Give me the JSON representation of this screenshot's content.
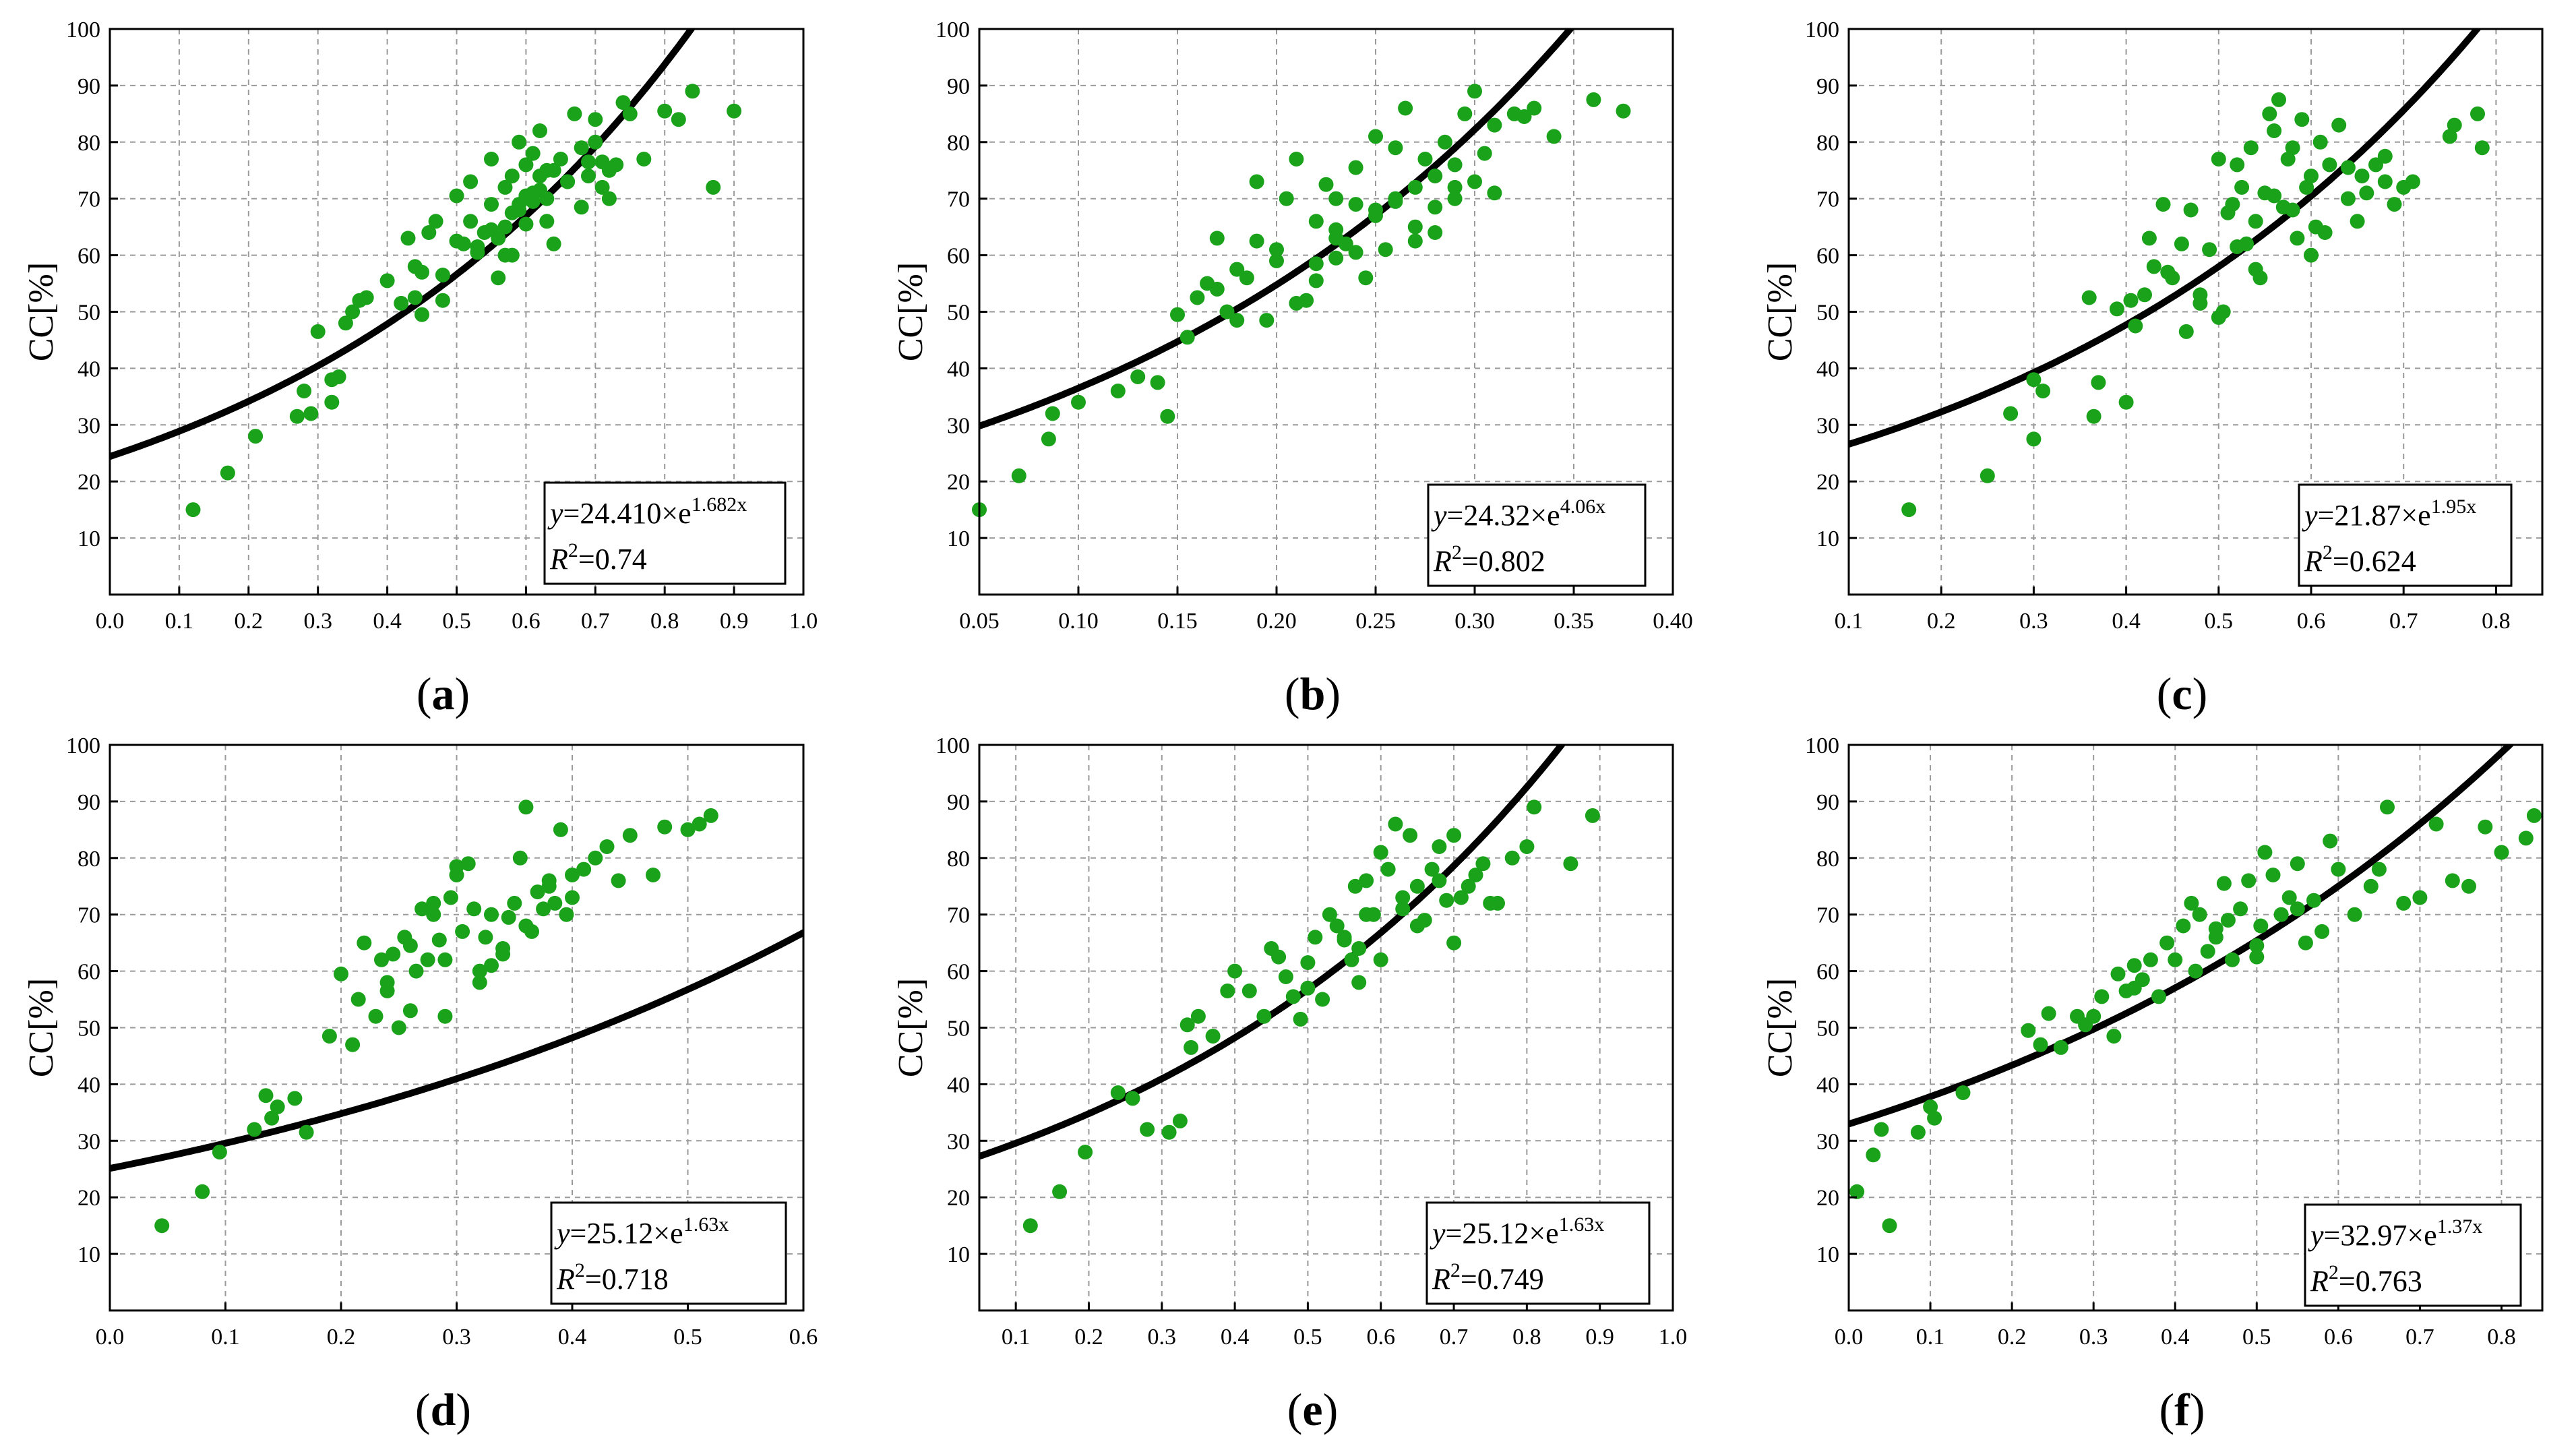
{
  "figure": {
    "point_color": "#1aa31a",
    "line_color": "#000000"
  },
  "chart_data": [
    {
      "id": "a",
      "type": "scatter",
      "panel_label": "a",
      "ylabel": "CC[%]",
      "xlim": [
        0,
        1.0
      ],
      "ylim": [
        0,
        100
      ],
      "xticks": [
        "0.0",
        "0.1",
        "0.2",
        "0.3",
        "0.4",
        "0.5",
        "0.6",
        "0.7",
        "0.8",
        "0.9",
        "1.0"
      ],
      "xtick_values": [
        0,
        0.1,
        0.2,
        0.3,
        0.4,
        0.5,
        0.6,
        0.7,
        0.8,
        0.9,
        1.0
      ],
      "yticks": [
        "10",
        "20",
        "30",
        "40",
        "50",
        "60",
        "70",
        "80",
        "90",
        "100"
      ],
      "fit": {
        "a": 24.41,
        "b": 1.682,
        "eq_coef": "24.410",
        "eq_exp": "1.682x",
        "r2": "0.74"
      },
      "x": [
        0.12,
        0.17,
        0.21,
        0.27,
        0.28,
        0.29,
        0.3,
        0.32,
        0.32,
        0.33,
        0.34,
        0.35,
        0.36,
        0.37,
        0.4,
        0.42,
        0.43,
        0.44,
        0.45,
        0.45,
        0.46,
        0.47,
        0.48,
        0.5,
        0.51,
        0.52,
        0.52,
        0.53,
        0.54,
        0.55,
        0.55,
        0.56,
        0.56,
        0.57,
        0.57,
        0.58,
        0.58,
        0.59,
        0.59,
        0.6,
        0.6,
        0.61,
        0.61,
        0.62,
        0.62,
        0.63,
        0.63,
        0.64,
        0.64,
        0.65,
        0.66,
        0.67,
        0.68,
        0.68,
        0.69,
        0.7,
        0.7,
        0.71,
        0.72,
        0.72,
        0.73,
        0.74,
        0.75,
        0.77,
        0.8,
        0.82,
        0.84,
        0.87,
        0.9,
        0.55,
        0.58,
        0.6,
        0.62,
        0.66,
        0.69,
        0.71,
        0.48,
        0.53,
        0.57,
        0.61,
        0.44,
        0.5,
        0.59,
        0.63
      ],
      "y": [
        15,
        21.5,
        28,
        31.5,
        36,
        32,
        46.5,
        34,
        38,
        38.5,
        48,
        50,
        52,
        52.5,
        55.5,
        51.5,
        63,
        52.5,
        49.5,
        57,
        64,
        66,
        52,
        70.5,
        62,
        66,
        73,
        61.5,
        64,
        69,
        77,
        56,
        63,
        60,
        72,
        74,
        60,
        68,
        80,
        76,
        65.5,
        71,
        78,
        74,
        82,
        70,
        66,
        75,
        62,
        77,
        73,
        85,
        68.5,
        79,
        76.5,
        80,
        84,
        72,
        70,
        75,
        76,
        87,
        85,
        77,
        85.5,
        84,
        89,
        72,
        85.5,
        64.5,
        67.5,
        70.5,
        71.5,
        73,
        74,
        76.5,
        56.5,
        60.5,
        65,
        69.5,
        58,
        62.5,
        69,
        75
      ]
    },
    {
      "id": "b",
      "type": "scatter",
      "panel_label": "b",
      "ylabel": "CC[%]",
      "xlim": [
        0.05,
        0.4
      ],
      "ylim": [
        0,
        100
      ],
      "xticks": [
        "0.05",
        "0.10",
        "0.15",
        "0.20",
        "0.25",
        "0.30",
        "0.35",
        "0.40"
      ],
      "xtick_values": [
        0.05,
        0.1,
        0.15,
        0.2,
        0.25,
        0.3,
        0.35,
        0.4
      ],
      "yticks": [
        "10",
        "20",
        "30",
        "40",
        "50",
        "60",
        "70",
        "80",
        "90",
        "100"
      ],
      "fit": {
        "a": 24.32,
        "b": 4.06,
        "eq_coef": "24.32",
        "eq_exp": "4.06x",
        "r2": "0.802"
      },
      "x": [
        0.05,
        0.07,
        0.085,
        0.087,
        0.1,
        0.12,
        0.13,
        0.14,
        0.145,
        0.15,
        0.155,
        0.16,
        0.165,
        0.17,
        0.175,
        0.18,
        0.185,
        0.19,
        0.195,
        0.2,
        0.205,
        0.21,
        0.215,
        0.22,
        0.22,
        0.225,
        0.23,
        0.23,
        0.235,
        0.24,
        0.24,
        0.245,
        0.25,
        0.25,
        0.255,
        0.26,
        0.26,
        0.265,
        0.27,
        0.27,
        0.275,
        0.28,
        0.28,
        0.285,
        0.29,
        0.29,
        0.295,
        0.3,
        0.3,
        0.305,
        0.31,
        0.31,
        0.32,
        0.325,
        0.33,
        0.34,
        0.36,
        0.375,
        0.19,
        0.21,
        0.23,
        0.25,
        0.27,
        0.29,
        0.18,
        0.2,
        0.22,
        0.24,
        0.26,
        0.17,
        0.23,
        0.28
      ],
      "y": [
        15,
        21,
        27.5,
        32,
        34,
        36,
        38.5,
        37.5,
        31.5,
        49.5,
        45.5,
        52.5,
        55,
        63,
        50,
        48.5,
        56,
        62.5,
        48.5,
        59,
        70,
        77,
        52,
        55.5,
        66,
        72.5,
        64.5,
        70,
        62,
        69,
        75.5,
        56,
        68,
        81,
        61,
        79,
        70,
        86,
        72,
        62.5,
        77,
        74,
        68.5,
        80,
        72,
        76,
        85,
        73,
        89,
        78,
        71,
        83,
        85,
        84.5,
        86,
        81,
        87.5,
        85.5,
        73,
        51.5,
        63,
        67,
        65,
        70,
        57.5,
        61,
        58.5,
        60.5,
        69.5,
        54,
        59.5,
        64
      ]
    },
    {
      "id": "c",
      "type": "scatter",
      "panel_label": "c",
      "ylabel": "CC[%]",
      "xlim": [
        0.1,
        0.85
      ],
      "ylim": [
        0,
        100
      ],
      "xticks": [
        "0.1",
        "0.2",
        "0.3",
        "0.4",
        "0.5",
        "0.6",
        "0.7",
        "0.8"
      ],
      "xtick_values": [
        0.1,
        0.2,
        0.3,
        0.4,
        0.5,
        0.6,
        0.7,
        0.8
      ],
      "yticks": [
        "10",
        "20",
        "30",
        "40",
        "50",
        "60",
        "70",
        "80",
        "90",
        "100"
      ],
      "fit": {
        "a": 21.87,
        "b": 1.95,
        "eq_coef": "21.87",
        "eq_exp": "1.95x",
        "r2": "0.624"
      },
      "x": [
        0.165,
        0.25,
        0.275,
        0.3,
        0.3,
        0.31,
        0.36,
        0.365,
        0.37,
        0.39,
        0.4,
        0.405,
        0.41,
        0.42,
        0.425,
        0.43,
        0.44,
        0.445,
        0.45,
        0.46,
        0.465,
        0.47,
        0.48,
        0.49,
        0.5,
        0.505,
        0.51,
        0.515,
        0.52,
        0.525,
        0.53,
        0.535,
        0.54,
        0.545,
        0.55,
        0.555,
        0.56,
        0.565,
        0.57,
        0.575,
        0.58,
        0.585,
        0.59,
        0.595,
        0.6,
        0.605,
        0.61,
        0.615,
        0.62,
        0.63,
        0.64,
        0.65,
        0.655,
        0.66,
        0.67,
        0.68,
        0.69,
        0.7,
        0.71,
        0.75,
        0.755,
        0.78,
        0.785,
        0.48,
        0.52,
        0.56,
        0.6,
        0.64,
        0.68,
        0.5,
        0.54,
        0.58
      ],
      "y": [
        15,
        21,
        32,
        38,
        27.5,
        36,
        52.5,
        31.5,
        37.5,
        50.5,
        34,
        52,
        47.5,
        53,
        63,
        58,
        69,
        57,
        56,
        62,
        46.5,
        68,
        53,
        61,
        77,
        50,
        67.5,
        69,
        76,
        72,
        62,
        79,
        66,
        56,
        71,
        85,
        82,
        87.5,
        68.5,
        77,
        79,
        63,
        84,
        72,
        60,
        65,
        80,
        64,
        76,
        83,
        70,
        66,
        74,
        71,
        76,
        73,
        69,
        72,
        73,
        81,
        83,
        85,
        79,
        51.5,
        61.5,
        70.5,
        74,
        75.5,
        77.5,
        49,
        57.5,
        68
      ]
    },
    {
      "id": "d",
      "type": "scatter",
      "panel_label": "d",
      "ylabel": "CC[%]",
      "xlim": [
        0.0,
        0.6
      ],
      "ylim": [
        0,
        100
      ],
      "xticks": [
        "0.0",
        "0.1",
        "0.2",
        "0.3",
        "0.4",
        "0.5",
        "0.6"
      ],
      "xtick_values": [
        0,
        0.1,
        0.2,
        0.3,
        0.4,
        0.5,
        0.6
      ],
      "yticks": [
        "10",
        "20",
        "30",
        "40",
        "50",
        "60",
        "70",
        "80",
        "90",
        "100"
      ],
      "fit": {
        "a": 25.12,
        "b": 1.63,
        "eq_coef": "25.12",
        "eq_exp": "1.63x",
        "r2": "0.718"
      },
      "x": [
        0.045,
        0.08,
        0.095,
        0.125,
        0.135,
        0.14,
        0.145,
        0.16,
        0.17,
        0.19,
        0.2,
        0.21,
        0.215,
        0.22,
        0.23,
        0.235,
        0.24,
        0.245,
        0.25,
        0.255,
        0.26,
        0.265,
        0.27,
        0.275,
        0.28,
        0.285,
        0.29,
        0.295,
        0.3,
        0.305,
        0.31,
        0.315,
        0.32,
        0.325,
        0.33,
        0.34,
        0.345,
        0.35,
        0.355,
        0.36,
        0.365,
        0.37,
        0.375,
        0.38,
        0.385,
        0.39,
        0.395,
        0.4,
        0.41,
        0.42,
        0.43,
        0.44,
        0.45,
        0.47,
        0.48,
        0.5,
        0.51,
        0.52,
        0.28,
        0.3,
        0.34,
        0.38,
        0.26,
        0.32,
        0.36,
        0.4,
        0.24,
        0.29,
        0.33
      ],
      "y": [
        15,
        21,
        28,
        32,
        38,
        34,
        36,
        37.5,
        31.5,
        48.5,
        59.5,
        47,
        55,
        65,
        52,
        62,
        56.5,
        63,
        50,
        66,
        53,
        60,
        71,
        62,
        72,
        65.5,
        52,
        73,
        78.5,
        67,
        79,
        71,
        58,
        66,
        70,
        63,
        69.5,
        72,
        80,
        89,
        67,
        74,
        71,
        76,
        72,
        85,
        70,
        77,
        78,
        80,
        82,
        76,
        84,
        77,
        85.5,
        85,
        86,
        87.5,
        70,
        77,
        64,
        75,
        64.5,
        60,
        68,
        73,
        58,
        62,
        61
      ]
    },
    {
      "id": "e",
      "type": "scatter",
      "panel_label": "e",
      "ylabel": "CC[%]",
      "xlim": [
        0.05,
        1.0
      ],
      "ylim": [
        0,
        100
      ],
      "xticks": [
        "0.1",
        "0.2",
        "0.3",
        "0.4",
        "0.5",
        "0.6",
        "0.7",
        "0.8",
        "0.9",
        "1.0"
      ],
      "xtick_values": [
        0.1,
        0.2,
        0.3,
        0.4,
        0.5,
        0.6,
        0.7,
        0.8,
        0.9,
        1.0
      ],
      "yticks": [
        "10",
        "20",
        "30",
        "40",
        "50",
        "60",
        "70",
        "80",
        "90",
        "100"
      ],
      "fit": {
        "a": 25.12,
        "b": 1.63,
        "eq_coef": "25.12",
        "eq_exp": "1.63x",
        "r2": "0.749"
      },
      "x": [
        0.12,
        0.16,
        0.195,
        0.24,
        0.26,
        0.28,
        0.31,
        0.325,
        0.335,
        0.34,
        0.35,
        0.37,
        0.39,
        0.4,
        0.42,
        0.44,
        0.45,
        0.46,
        0.47,
        0.48,
        0.49,
        0.5,
        0.51,
        0.52,
        0.53,
        0.54,
        0.55,
        0.56,
        0.565,
        0.57,
        0.58,
        0.59,
        0.6,
        0.61,
        0.62,
        0.63,
        0.64,
        0.65,
        0.66,
        0.67,
        0.68,
        0.69,
        0.7,
        0.71,
        0.72,
        0.74,
        0.76,
        0.78,
        0.8,
        0.81,
        0.86,
        0.89,
        0.55,
        0.6,
        0.65,
        0.7,
        0.75,
        0.58,
        0.63,
        0.68,
        0.73,
        0.5,
        0.57
      ],
      "y": [
        15,
        21,
        28,
        38.5,
        37.5,
        32,
        31.5,
        33.5,
        50.5,
        46.5,
        52,
        48.5,
        56.5,
        60,
        56.5,
        52,
        64,
        62.5,
        59,
        55.5,
        51.5,
        61.5,
        66,
        55,
        70,
        68,
        65.5,
        62,
        75,
        58,
        76,
        70,
        81,
        78,
        86,
        71,
        84,
        75,
        69,
        78,
        82,
        72.5,
        84,
        73,
        75,
        79,
        72,
        80,
        82,
        89,
        79,
        87.5,
        66,
        62,
        68,
        65,
        72,
        70,
        73,
        76,
        77,
        57,
        64
      ]
    },
    {
      "id": "f",
      "type": "scatter",
      "panel_label": "f",
      "ylabel": "CC[%]",
      "xlim": [
        0.0,
        0.85
      ],
      "ylim": [
        0,
        100
      ],
      "xticks": [
        "0.0",
        "0.1",
        "0.2",
        "0.3",
        "0.4",
        "0.5",
        "0.6",
        "0.7",
        "0.8"
      ],
      "xtick_values": [
        0,
        0.1,
        0.2,
        0.3,
        0.4,
        0.5,
        0.6,
        0.7,
        0.8
      ],
      "yticks": [
        "10",
        "20",
        "30",
        "40",
        "50",
        "60",
        "70",
        "80",
        "90",
        "100"
      ],
      "fit": {
        "a": 32.97,
        "b": 1.37,
        "eq_coef": "32.97",
        "eq_exp": "1.37x",
        "r2": "0.763"
      },
      "x": [
        0.01,
        0.03,
        0.04,
        0.05,
        0.085,
        0.1,
        0.105,
        0.14,
        0.22,
        0.235,
        0.245,
        0.26,
        0.28,
        0.29,
        0.3,
        0.31,
        0.325,
        0.33,
        0.34,
        0.35,
        0.36,
        0.37,
        0.38,
        0.39,
        0.4,
        0.41,
        0.42,
        0.425,
        0.43,
        0.44,
        0.45,
        0.46,
        0.465,
        0.47,
        0.48,
        0.49,
        0.5,
        0.505,
        0.51,
        0.52,
        0.53,
        0.54,
        0.55,
        0.56,
        0.57,
        0.58,
        0.59,
        0.6,
        0.62,
        0.64,
        0.66,
        0.68,
        0.7,
        0.72,
        0.74,
        0.76,
        0.78,
        0.8,
        0.83,
        0.84,
        0.45,
        0.55,
        0.65,
        0.35,
        0.5
      ],
      "y": [
        21,
        27.5,
        32,
        15,
        31.5,
        36,
        34,
        38.5,
        49.5,
        47,
        52.5,
        46.5,
        52,
        50.5,
        52,
        55.5,
        48.5,
        59.5,
        56.5,
        61,
        58.5,
        62,
        55.5,
        65,
        62,
        68,
        72,
        60,
        70,
        63.5,
        67.5,
        75.5,
        69,
        62,
        71,
        76,
        62.5,
        68,
        81,
        77,
        70,
        73,
        79,
        65,
        72.5,
        67,
        83,
        78,
        70,
        75,
        89,
        72,
        73,
        86,
        76,
        75,
        85.5,
        81,
        83.5,
        87.5,
        66,
        71,
        78,
        57,
        64.5
      ]
    }
  ]
}
